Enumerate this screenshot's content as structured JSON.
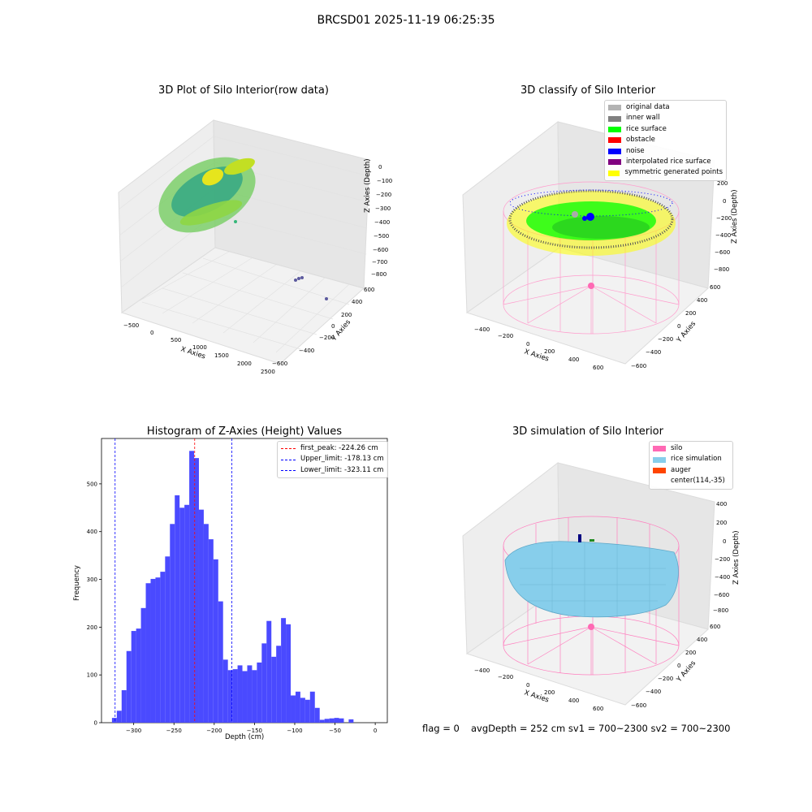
{
  "suptitle": "BRCSD01 2025-11-19 06:25:35",
  "panels": {
    "raw": {
      "title": "3D Plot of Silo Interior(row data)",
      "xlabel": "X Axies",
      "ylabel": "Y Axies",
      "zlabel": "Z Axies (Depth)",
      "xticks": [
        "−500",
        "0",
        "500",
        "1000",
        "1500",
        "2000",
        "2500"
      ],
      "yticks": [
        "−600",
        "−400",
        "−200",
        "0",
        "200",
        "400",
        "600"
      ],
      "zticks": [
        "0",
        "−100",
        "−200",
        "−300",
        "−400",
        "−500",
        "−600",
        "−700",
        "−800"
      ]
    },
    "classify": {
      "title": "3D classify of Silo Interior",
      "xlabel": "X Axies",
      "ylabel": "Y Axies",
      "zlabel": "Z Axies (Depth)",
      "xticks": [
        "−400",
        "−200",
        "0",
        "200",
        "400",
        "600"
      ],
      "yticks": [
        "−600",
        "−400",
        "−200",
        "0",
        "200",
        "400",
        "600"
      ],
      "zticks": [
        "200",
        "0",
        "−200",
        "−400",
        "−600",
        "−800"
      ],
      "legend": [
        {
          "label": "original data",
          "color": "#b3b3b3"
        },
        {
          "label": "inner wall",
          "color": "#808080"
        },
        {
          "label": "rice surface",
          "color": "#00ff00"
        },
        {
          "label": "obstacle",
          "color": "#ff0000"
        },
        {
          "label": "noise",
          "color": "#0000ff"
        },
        {
          "label": "interpolated rice surface",
          "color": "#800080"
        },
        {
          "label": "symmetric generated points",
          "color": "#ffff00"
        }
      ]
    },
    "simulation": {
      "title": "3D simulation of Silo Interior",
      "xlabel": "X Axies",
      "ylabel": "Y Axies",
      "zlabel": "Z Axies (Depth)",
      "xticks": [
        "−400",
        "−200",
        "0",
        "200",
        "400",
        "600"
      ],
      "yticks": [
        "−600",
        "−400",
        "−200",
        "0",
        "200",
        "400",
        "600"
      ],
      "zticks": [
        "400",
        "200",
        "0",
        "−200",
        "−400",
        "−600",
        "−800"
      ],
      "legend": [
        {
          "label": "silo",
          "color": "#ff69b4"
        },
        {
          "label": "rice simulation",
          "color": "#87ceeb"
        },
        {
          "label": "auger",
          "color": "#ff4500"
        },
        {
          "label": "center(114,-35)",
          "color": ""
        }
      ]
    }
  },
  "footer": {
    "flag": "flag = 0",
    "stats": "avgDepth = 252 cm  sv1 = 700~2300  sv2 = 700~2300"
  },
  "colors": {
    "bars": "#4a4aff",
    "peak_line": "#ff0000",
    "limit_line": "#0000ff"
  },
  "chart_data": {
    "type": "bar",
    "title": "Histogram of Z-Axies (Height) Values",
    "xlabel": "Depth (cm)",
    "ylabel": "Frequency",
    "xlim": [
      -340,
      15
    ],
    "ylim": [
      0,
      595
    ],
    "xticks": [
      -300,
      -250,
      -200,
      -150,
      -100,
      -50,
      0
    ],
    "yticks": [
      0,
      100,
      200,
      300,
      400,
      500
    ],
    "bin_width": 6.0,
    "bin_start": -327,
    "values": [
      10,
      25,
      68,
      150,
      192,
      197,
      240,
      292,
      301,
      304,
      316,
      348,
      416,
      476,
      450,
      456,
      569,
      554,
      446,
      416,
      384,
      342,
      254,
      132,
      110,
      112,
      120,
      108,
      120,
      110,
      126,
      166,
      213,
      138,
      161,
      219,
      206,
      57,
      65,
      52,
      48,
      65,
      31,
      6,
      8,
      9,
      10,
      9,
      0,
      7
    ],
    "lines": [
      {
        "name": "first_peak: -224.26 cm",
        "x": -224.26,
        "color": "#ff0000"
      },
      {
        "name": "Upper_limit: -178.13 cm",
        "x": -178.13,
        "color": "#0000ff"
      },
      {
        "name": "Lower_limit: -323.11 cm",
        "x": -323.11,
        "color": "#0000ff"
      }
    ],
    "legend_position": "upper right",
    "grid": false
  }
}
